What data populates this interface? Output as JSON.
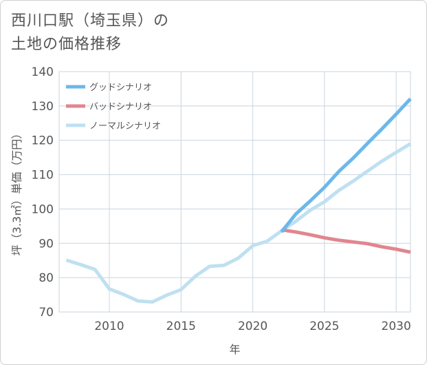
{
  "title": "西川口駅（埼玉県）の\n土地の価格推移",
  "chart_data": {
    "type": "line",
    "xlabel": "年",
    "ylabel": "坪（3.3㎡）単価（万円）",
    "xlim": [
      2006.5,
      2031
    ],
    "ylim": [
      70,
      140
    ],
    "xticks": [
      2010,
      2015,
      2020,
      2025,
      2030
    ],
    "yticks": [
      70,
      80,
      90,
      100,
      110,
      120,
      130,
      140
    ],
    "grid": true,
    "legend_position": "top-left",
    "series": [
      {
        "name": "グッドシナリオ",
        "color": "#6bb8ea",
        "x": [
          2022,
          2023,
          2024,
          2025,
          2026,
          2027,
          2028,
          2029,
          2030,
          2031
        ],
        "values": [
          93.3,
          98.5,
          102.3,
          106.3,
          110.9,
          114.8,
          119.1,
          123.3,
          127.6,
          132.1
        ]
      },
      {
        "name": "バッドシナリオ",
        "color": "#e0868f",
        "x": [
          2022,
          2023,
          2024,
          2025,
          2026,
          2027,
          2028,
          2029,
          2030,
          2031
        ],
        "values": [
          93.9,
          93.3,
          92.5,
          91.6,
          90.9,
          90.4,
          89.9,
          89.0,
          88.3,
          87.4
        ]
      },
      {
        "name": "ノーマルシナリオ",
        "color": "#bfe0f0",
        "x": [
          2007,
          2008,
          2009,
          2010,
          2011,
          2012,
          2013,
          2014,
          2015,
          2016,
          2017,
          2018,
          2019,
          2020,
          2021,
          2022,
          2023,
          2024,
          2025,
          2026,
          2027,
          2028,
          2029,
          2030,
          2031
        ],
        "values": [
          85.1,
          83.8,
          82.4,
          76.7,
          75.1,
          73.2,
          72.9,
          74.9,
          76.5,
          80.4,
          83.3,
          83.6,
          85.7,
          89.3,
          90.6,
          93.6,
          96.4,
          99.6,
          102.1,
          105.4,
          108.1,
          111.0,
          113.9,
          116.5,
          119.0
        ]
      }
    ]
  }
}
